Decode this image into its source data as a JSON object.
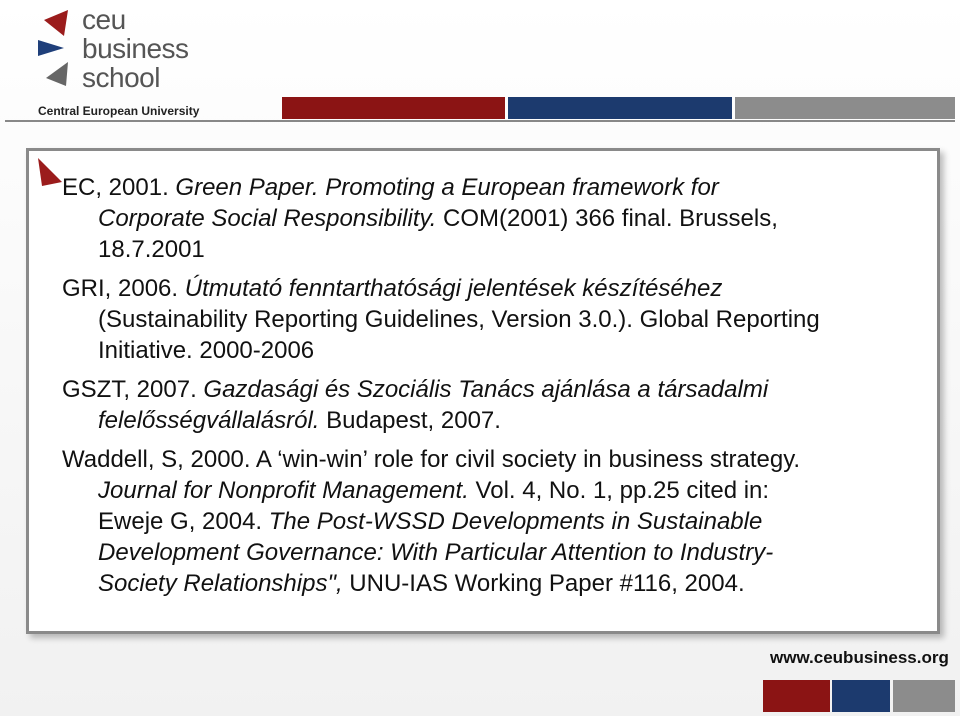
{
  "header": {
    "logo_lines": [
      "ceu",
      "business",
      "school"
    ],
    "university": "Central European University"
  },
  "references": [
    {
      "lines": [
        [
          {
            "text": "EC, 2001. ",
            "italic": false
          },
          {
            "text": "Green Paper. Promoting a European framework for",
            "italic": true
          }
        ],
        [
          {
            "text": "Corporate Social Responsibility.",
            "italic": true
          },
          {
            "text": " COM(2001) 366 final. Brussels,",
            "italic": false
          }
        ],
        [
          {
            "text": "18.7.2001",
            "italic": false
          }
        ]
      ]
    },
    {
      "lines": [
        [
          {
            "text": "GRI, 2006. ",
            "italic": false
          },
          {
            "text": "Útmutató fenntarthatósági jelentések készítéséhez",
            "italic": true
          }
        ],
        [
          {
            "text": "(Sustainability Reporting Guidelines, Version 3.0.). Global Reporting",
            "italic": false
          }
        ],
        [
          {
            "text": "Initiative. 2000-2006",
            "italic": false
          }
        ]
      ]
    },
    {
      "lines": [
        [
          {
            "text": "GSZT, 2007. ",
            "italic": false
          },
          {
            "text": "Gazdasági és Szociális Tanács ajánlása a társadalmi",
            "italic": true
          }
        ],
        [
          {
            "text": "felelősségvállalásról.",
            "italic": true
          },
          {
            "text": " Budapest, 2007.",
            "italic": false
          }
        ]
      ]
    },
    {
      "lines": [
        [
          {
            "text": "Waddell, S, 2000. A ‘win-win’ role for civil society in business strategy.",
            "italic": false
          }
        ],
        [
          {
            "text": "Journal for Nonprofit Management.",
            "italic": true
          },
          {
            "text": " Vol. 4, No. 1, pp.25 cited in:",
            "italic": false
          }
        ],
        [
          {
            "text": "Eweje G, 2004. ",
            "italic": false
          },
          {
            "text": "The Post-WSSD Developments in Sustainable",
            "italic": true
          }
        ],
        [
          {
            "text": "Development Governance: With Particular Attention to Industry-",
            "italic": true
          }
        ],
        [
          {
            "text": "Society Relationships\",",
            "italic": true
          },
          {
            "text": " UNU-IAS Working Paper #116, 2004.",
            "italic": false
          }
        ]
      ]
    }
  ],
  "footer": {
    "url": "www.ceubusiness.org"
  }
}
